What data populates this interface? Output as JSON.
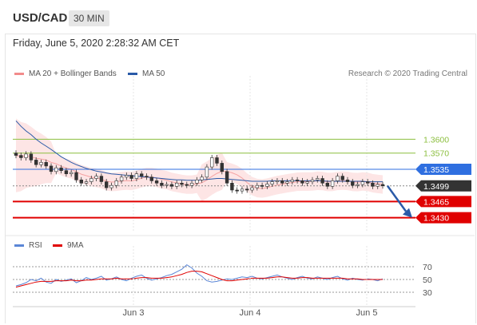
{
  "header": {
    "pair": "USD/CAD",
    "timeframe": "30 MIN"
  },
  "datetime": "Friday, June 5, 2020 2:28:32 AM CET",
  "legend_main": [
    {
      "label": "MA 20 + Bollinger Bands",
      "color": "#f28b8b"
    },
    {
      "label": "MA 50",
      "color": "#2a5aa8"
    }
  ],
  "legend_rsi": [
    {
      "label": "RSI",
      "color": "#5b86d6"
    },
    {
      "label": "9MA",
      "color": "#e00000"
    }
  ],
  "copyright": "Research © 2020 Trading Central",
  "colors": {
    "resistance_blue": "#2f6fe0",
    "support_red": "#e00000",
    "target_green": "#8cbf3f",
    "last_price": "#333333",
    "arrow": "#2a5aa8"
  },
  "chart_data": {
    "type": "candlestick",
    "x_ticks": [
      "Jun 3",
      "Jun 4",
      "Jun 5"
    ],
    "levels": [
      {
        "value": 1.36,
        "label": "1.3600",
        "kind": "target"
      },
      {
        "value": 1.357,
        "label": "1.3570",
        "kind": "target"
      },
      {
        "value": 1.3535,
        "label": "1.3535",
        "kind": "pivot"
      },
      {
        "value": 1.3499,
        "label": "1.3499",
        "kind": "last"
      },
      {
        "value": 1.3465,
        "label": "1.3465",
        "kind": "support"
      },
      {
        "value": 1.343,
        "label": "1.3430",
        "kind": "support"
      }
    ],
    "price_range": [
      1.34,
      1.372
    ],
    "close_series": [
      1.3565,
      1.356,
      1.3568,
      1.3555,
      1.3545,
      1.355,
      1.3542,
      1.353,
      1.3538,
      1.3532,
      1.3525,
      1.3528,
      1.3512,
      1.3505,
      1.3508,
      1.3515,
      1.352,
      1.3508,
      1.3495,
      1.35,
      1.351,
      1.3518,
      1.3522,
      1.3515,
      1.3525,
      1.352,
      1.3518,
      1.351,
      1.3505,
      1.35,
      1.3502,
      1.3498,
      1.3505,
      1.3502,
      1.35,
      1.3505,
      1.3512,
      1.3518,
      1.354,
      1.356,
      1.3548,
      1.353,
      1.3505,
      1.349,
      1.3488,
      1.3492,
      1.349,
      1.3495,
      1.35,
      1.3498,
      1.3503,
      1.3508,
      1.351,
      1.3505,
      1.3508,
      1.3512,
      1.351,
      1.3505,
      1.3508,
      1.3512,
      1.3515,
      1.3505,
      1.3498,
      1.351,
      1.352,
      1.3512,
      1.3508,
      1.35,
      1.3502,
      1.3508,
      1.3505,
      1.3498,
      1.3502,
      1.3499
    ],
    "ma50_series": [
      1.364,
      1.3628,
      1.3618,
      1.361,
      1.36,
      1.3592,
      1.3585,
      1.3578,
      1.357,
      1.3562,
      1.3556,
      1.355,
      1.3545,
      1.3541,
      1.3537,
      1.3534,
      1.3531,
      1.3529,
      1.3527,
      1.3525,
      1.3524,
      1.3523,
      1.3522,
      1.3521,
      1.352,
      1.3519,
      1.3518,
      1.3517,
      1.3516,
      1.3515,
      1.3514,
      1.3513,
      1.3512,
      1.3512,
      1.3511,
      1.3511,
      1.3511,
      1.3512,
      1.3513,
      1.3514,
      1.3515,
      1.3515,
      1.3514,
      1.3513,
      1.3512,
      1.3511,
      1.351,
      1.3509,
      1.3509,
      1.3509,
      1.3509,
      1.351,
      1.351,
      1.351,
      1.351,
      1.351,
      1.351,
      1.351,
      1.351,
      1.351,
      1.351,
      1.351,
      1.3509,
      1.3509,
      1.3509,
      1.3509,
      1.3509,
      1.3509,
      1.3509,
      1.3509,
      1.3508,
      1.3508,
      1.3508,
      1.3508
    ],
    "rsi": {
      "levels": [
        70,
        50,
        30
      ],
      "range": [
        10,
        90
      ],
      "rsi_series": [
        40,
        42,
        45,
        50,
        48,
        52,
        46,
        44,
        50,
        47,
        49,
        51,
        45,
        48,
        53,
        50,
        52,
        55,
        49,
        51,
        54,
        50,
        48,
        52,
        55,
        57,
        52,
        49,
        51,
        53,
        56,
        58,
        62,
        66,
        73,
        68,
        60,
        55,
        48,
        46,
        47,
        49,
        51,
        50,
        52,
        54,
        53,
        55,
        52,
        51,
        53,
        55,
        57,
        54,
        52,
        50,
        53,
        55,
        52,
        51,
        54,
        52,
        50,
        53,
        55,
        51,
        49,
        52,
        50,
        49,
        51,
        50,
        48,
        51
      ],
      "ma9_series": [
        38,
        40,
        42,
        44,
        46,
        47,
        47,
        47,
        48,
        48,
        48,
        49,
        48,
        48,
        49,
        49,
        50,
        51,
        51,
        51,
        52,
        51,
        51,
        51,
        52,
        53,
        53,
        52,
        52,
        52,
        53,
        54,
        56,
        58,
        61,
        63,
        63,
        62,
        59,
        56,
        53,
        50,
        48,
        48,
        49,
        50,
        51,
        52,
        52,
        52,
        52,
        53,
        54,
        54,
        53,
        52,
        52,
        53,
        53,
        52,
        52,
        52,
        52,
        52,
        52,
        52,
        51,
        51,
        51,
        50,
        50,
        50,
        50,
        50
      ]
    }
  }
}
